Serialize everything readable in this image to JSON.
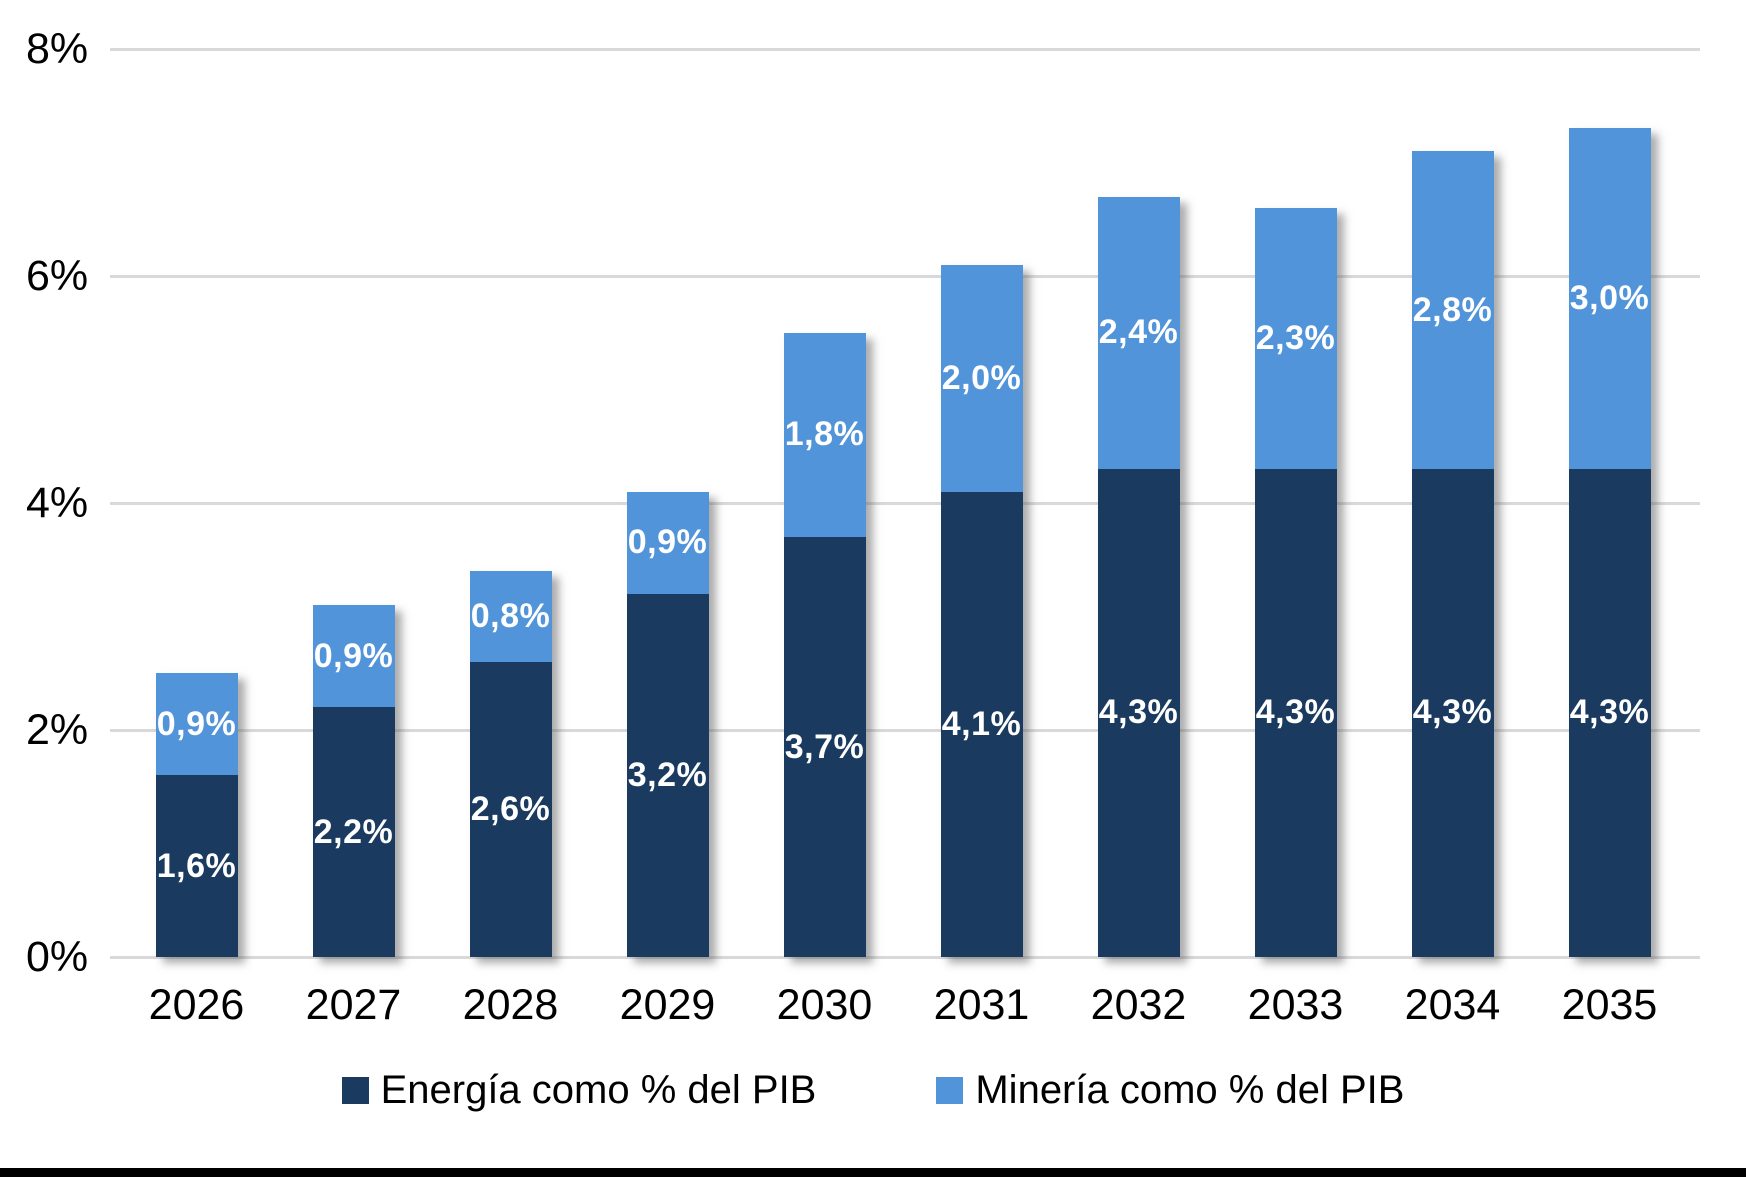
{
  "chart_data": {
    "type": "bar",
    "stacked": true,
    "title": "",
    "categories": [
      "2026",
      "2027",
      "2028",
      "2029",
      "2030",
      "2031",
      "2032",
      "2033",
      "2034",
      "2035"
    ],
    "series": [
      {
        "name": "Energía como % del PIB",
        "color": "#1A3B5F",
        "values": [
          1.6,
          2.2,
          2.6,
          3.2,
          3.7,
          4.1,
          4.3,
          4.3,
          4.3,
          4.3
        ],
        "labels": [
          "1,6%",
          "2,2%",
          "2,6%",
          "3,2%",
          "3,7%",
          "4,1%",
          "4,3%",
          "4,3%",
          "4,3%",
          "4,3%"
        ]
      },
      {
        "name": "Minería como % del PIB",
        "color": "#5294D9",
        "values": [
          0.9,
          0.9,
          0.8,
          0.9,
          1.8,
          2.0,
          2.4,
          2.3,
          2.8,
          3.0
        ],
        "labels": [
          "0,9%",
          "0,9%",
          "0,8%",
          "0,9%",
          "1,8%",
          "2,0%",
          "2,4%",
          "2,3%",
          "2,8%",
          "3,0%"
        ]
      }
    ],
    "xlabel": "",
    "ylabel": "",
    "ylim": [
      0,
      8
    ],
    "yticks": [
      {
        "value": 0,
        "label": "0%"
      },
      {
        "value": 2,
        "label": "2%"
      },
      {
        "value": 4,
        "label": "4%"
      },
      {
        "value": 6,
        "label": "6%"
      },
      {
        "value": 8,
        "label": "8%"
      }
    ],
    "grid": true,
    "legend_position": "bottom",
    "data_label_color": "#FFFFFF"
  },
  "colors": {
    "background": "#FFFFFF",
    "gridline": "#D9D9D9",
    "axis_text": "#000000",
    "bottom_strip": "#000000"
  }
}
